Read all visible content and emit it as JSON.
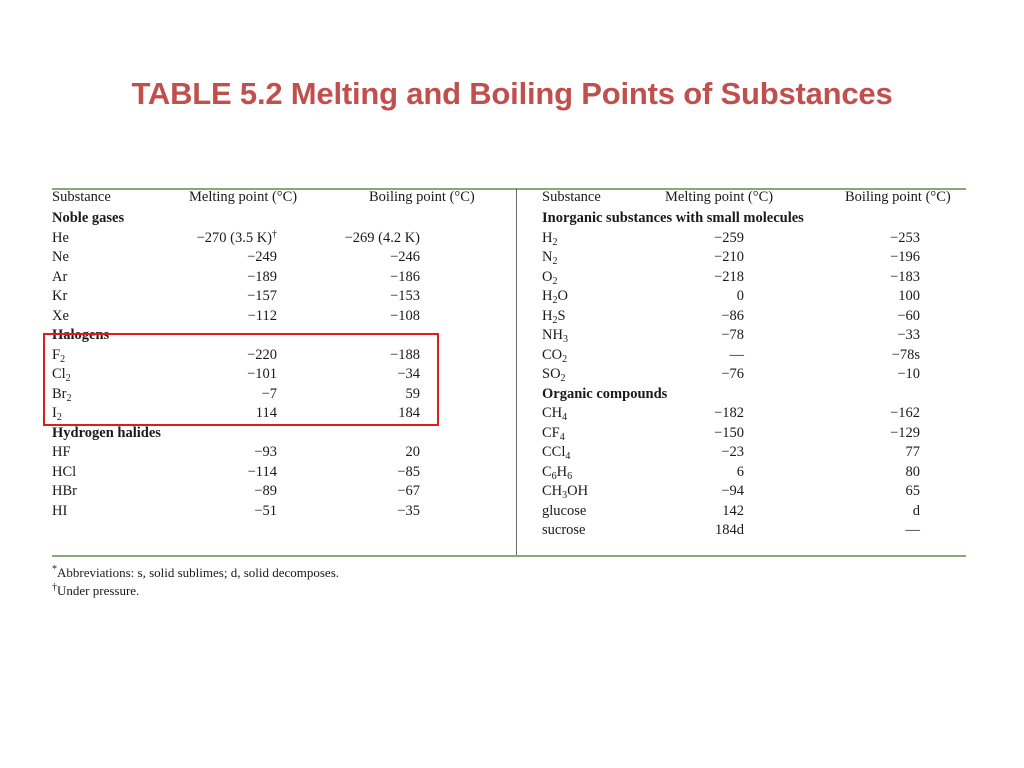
{
  "title": "TABLE 5.2 Melting and Boiling Points of Substances",
  "headers": {
    "substance": "Substance",
    "melting": "Melting point (°C)",
    "boiling": "Boiling point (°C)"
  },
  "left": {
    "groups": [
      {
        "name": "Noble gases",
        "rows": [
          {
            "name": "He",
            "mp": "−270 (3.5 K)",
            "mp_sup": "†",
            "bp": "−269 (4.2 K)"
          },
          {
            "name": "Ne",
            "mp": "−249",
            "bp": "−246"
          },
          {
            "name": "Ar",
            "mp": "−189",
            "bp": "−186"
          },
          {
            "name": "Kr",
            "mp": "−157",
            "bp": "−153"
          },
          {
            "name": "Xe",
            "mp": "−112",
            "bp": "−108"
          }
        ]
      },
      {
        "name": "Halogens",
        "rows": [
          {
            "name": "F",
            "sub": "2",
            "mp": "−220",
            "bp": "−188"
          },
          {
            "name": "Cl",
            "sub": "2",
            "mp": "−101",
            "bp": "−34"
          },
          {
            "name": "Br",
            "sub": "2",
            "mp": "−7",
            "bp": "59"
          },
          {
            "name": "I",
            "sub": "2",
            "mp": "114",
            "bp": "184"
          }
        ]
      },
      {
        "name": "Hydrogen halides",
        "rows": [
          {
            "name": "HF",
            "mp": "−93",
            "bp": "20"
          },
          {
            "name": "HCl",
            "mp": "−114",
            "bp": "−85"
          },
          {
            "name": "HBr",
            "mp": "−89",
            "bp": "−67"
          },
          {
            "name": "HI",
            "mp": "−51",
            "bp": "−35"
          }
        ]
      }
    ]
  },
  "right": {
    "groups": [
      {
        "name": "Inorganic substances with small molecules",
        "rows": [
          {
            "parts": [
              [
                "H",
                ""
              ],
              [
                "2",
                "sub"
              ]
            ],
            "mp": "−259",
            "bp": "−253"
          },
          {
            "parts": [
              [
                "N",
                ""
              ],
              [
                "2",
                "sub"
              ]
            ],
            "mp": "−210",
            "bp": "−196"
          },
          {
            "parts": [
              [
                "O",
                ""
              ],
              [
                "2",
                "sub"
              ]
            ],
            "mp": "−218",
            "bp": "−183"
          },
          {
            "parts": [
              [
                "H",
                ""
              ],
              [
                "2",
                "sub"
              ],
              [
                "O",
                ""
              ]
            ],
            "mp": "0",
            "bp": "100"
          },
          {
            "parts": [
              [
                "H",
                ""
              ],
              [
                "2",
                "sub"
              ],
              [
                "S",
                ""
              ]
            ],
            "mp": "−86",
            "bp": "−60"
          },
          {
            "parts": [
              [
                "NH",
                ""
              ],
              [
                "3",
                "sub"
              ]
            ],
            "mp": "−78",
            "bp": "−33"
          },
          {
            "parts": [
              [
                "CO",
                ""
              ],
              [
                "2",
                "sub"
              ]
            ],
            "mp": "—",
            "bp": "−78s"
          },
          {
            "parts": [
              [
                "SO",
                ""
              ],
              [
                "2",
                "sub"
              ]
            ],
            "mp": "−76",
            "bp": "−10"
          }
        ]
      },
      {
        "name": "Organic compounds",
        "rows": [
          {
            "parts": [
              [
                "CH",
                ""
              ],
              [
                "4",
                "sub"
              ]
            ],
            "mp": "−182",
            "bp": "−162"
          },
          {
            "parts": [
              [
                "CF",
                ""
              ],
              [
                "4",
                "sub"
              ]
            ],
            "mp": "−150",
            "bp": "−129"
          },
          {
            "parts": [
              [
                "CCl",
                ""
              ],
              [
                "4",
                "sub"
              ]
            ],
            "mp": "−23",
            "bp": "77"
          },
          {
            "parts": [
              [
                "C",
                ""
              ],
              [
                "6",
                "sub"
              ],
              [
                "H",
                ""
              ],
              [
                "6",
                "sub"
              ]
            ],
            "mp": "6",
            "bp": "80"
          },
          {
            "parts": [
              [
                "CH",
                ""
              ],
              [
                "3",
                "sub"
              ],
              [
                "OH",
                ""
              ]
            ],
            "mp": "−94",
            "bp": "65"
          },
          {
            "parts": [
              [
                "glucose",
                ""
              ]
            ],
            "mp": "142",
            "bp": "d"
          },
          {
            "parts": [
              [
                "sucrose",
                ""
              ]
            ],
            "mp": "184d",
            "bp": "—"
          }
        ]
      }
    ]
  },
  "footnotes": [
    {
      "mark": "*",
      "text": "Abbreviations: s, solid sublimes; d, solid decomposes."
    },
    {
      "mark": "†",
      "text": "Under pressure."
    }
  ],
  "colors": {
    "title": "#c0504d",
    "highlight_box": "#e01b1b",
    "rules": "#8aa873"
  }
}
